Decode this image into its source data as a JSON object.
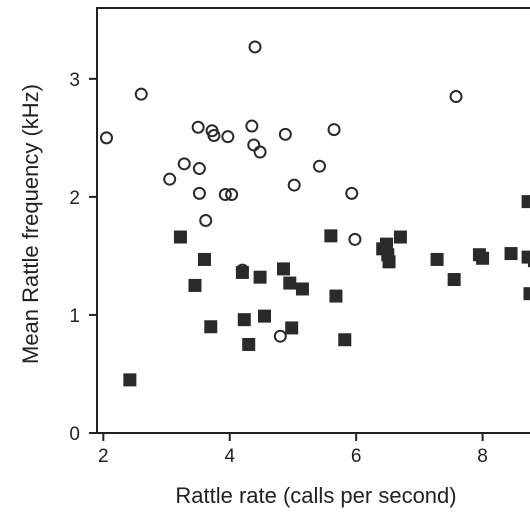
{
  "chart_data": {
    "type": "scatter",
    "title": "",
    "xlabel": "Rattle rate (calls per second)",
    "ylabel": "Mean Rattle frequency (kHz)",
    "xlim": [
      1.9,
      8.75
    ],
    "ylim": [
      0,
      3.6
    ],
    "x_tick_values": [
      2,
      4,
      6,
      8
    ],
    "x_tick_labels": [
      "2",
      "4",
      "6",
      "8"
    ],
    "y_tick_values": [
      0,
      1,
      2,
      3
    ],
    "y_tick_labels": [
      "0",
      "1",
      "2",
      "3"
    ],
    "grid": false,
    "legend": "none",
    "colors": {
      "axis": "#222222",
      "marker": "#2a2a2a",
      "background": "#ffffff"
    },
    "series": [
      {
        "marker": "open-circle",
        "x": [
          2.05,
          2.6,
          3.05,
          3.28,
          3.5,
          3.52,
          3.52,
          3.62,
          3.72,
          3.75,
          3.93,
          3.97,
          4.03,
          4.2,
          4.35,
          4.38,
          4.4,
          4.48,
          4.8,
          4.88,
          5.02,
          5.42,
          5.65,
          5.93,
          5.98,
          7.58
        ],
        "y": [
          2.5,
          2.87,
          2.15,
          2.28,
          2.59,
          2.24,
          2.03,
          1.8,
          2.56,
          2.52,
          2.02,
          2.51,
          2.02,
          1.38,
          2.6,
          2.44,
          3.27,
          2.38,
          0.82,
          2.53,
          2.1,
          2.26,
          2.57,
          2.03,
          1.64,
          2.85
        ]
      },
      {
        "marker": "filled-square",
        "x": [
          2.42,
          3.22,
          3.45,
          3.6,
          3.7,
          4.2,
          4.23,
          4.3,
          4.48,
          4.55,
          4.85,
          4.95,
          4.98,
          5.15,
          5.6,
          5.68,
          5.82,
          6.42,
          6.48,
          6.5,
          6.52,
          6.7,
          7.28,
          7.55,
          7.95,
          8.0,
          8.45,
          8.72,
          8.72,
          8.75,
          8.82
        ],
        "y": [
          0.45,
          1.66,
          1.25,
          1.47,
          0.9,
          1.36,
          0.96,
          0.75,
          1.32,
          0.99,
          1.39,
          1.27,
          0.89,
          1.22,
          1.67,
          1.16,
          0.79,
          1.56,
          1.6,
          1.51,
          1.45,
          1.66,
          1.47,
          1.3,
          1.51,
          1.48,
          1.52,
          1.96,
          1.49,
          1.18,
          1.46
        ]
      }
    ]
  }
}
